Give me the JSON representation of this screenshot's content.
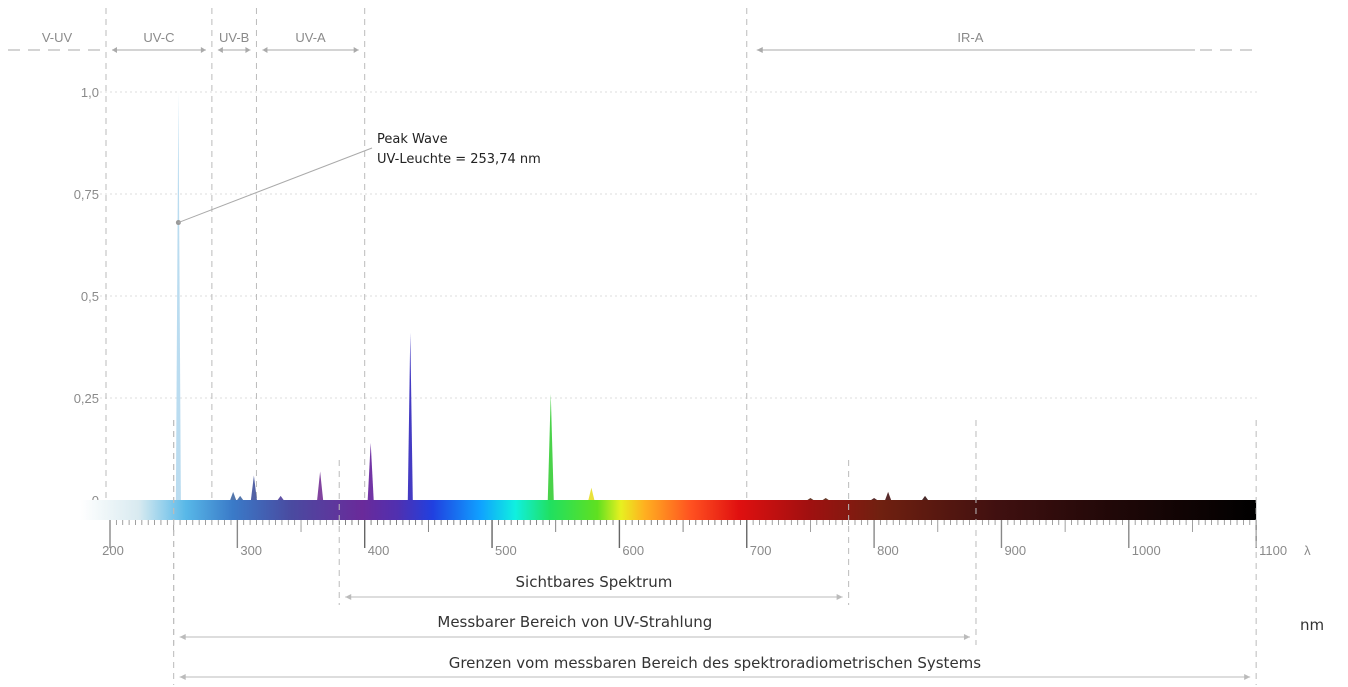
{
  "chart_data": {
    "type": "line",
    "title": "",
    "xlabel": "λ",
    "x_unit": "nm",
    "ylabel": "",
    "xlim": [
      180,
      1100
    ],
    "ylim": [
      0,
      1.0
    ],
    "grid": true,
    "y_ticks": [
      {
        "value": 0,
        "label": "0"
      },
      {
        "value": 0.25,
        "label": "0,25"
      },
      {
        "value": 0.5,
        "label": "0,5"
      },
      {
        "value": 0.75,
        "label": "0,75"
      },
      {
        "value": 1.0,
        "label": "1,0"
      }
    ],
    "x_ticks": [
      {
        "value": 200,
        "label": "200"
      },
      {
        "value": 300,
        "label": "300"
      },
      {
        "value": 400,
        "label": "400"
      },
      {
        "value": 500,
        "label": "500"
      },
      {
        "value": 600,
        "label": "600"
      },
      {
        "value": 700,
        "label": "700"
      },
      {
        "value": 800,
        "label": "800"
      },
      {
        "value": 900,
        "label": "900"
      },
      {
        "value": 1000,
        "label": "1000"
      },
      {
        "value": 1100,
        "label": "1100"
      }
    ],
    "series": [
      {
        "peaks": [
          {
            "x": 253.7,
            "y": 1.0,
            "color": "#a9d3ec"
          },
          {
            "x": 296.7,
            "y": 0.02,
            "color": "#4a6fa8"
          },
          {
            "x": 302.2,
            "y": 0.01,
            "color": "#4a6fa8"
          },
          {
            "x": 313.0,
            "y": 0.06,
            "color": "#4a5aa0"
          },
          {
            "x": 334.0,
            "y": 0.01,
            "color": "#5a4aa0"
          },
          {
            "x": 365.0,
            "y": 0.07,
            "color": "#7a3a9a"
          },
          {
            "x": 404.7,
            "y": 0.14,
            "color": "#6a2aa0"
          },
          {
            "x": 435.8,
            "y": 0.41,
            "color": "#3a30c0"
          },
          {
            "x": 546.1,
            "y": 0.26,
            "color": "#40d040"
          },
          {
            "x": 578.0,
            "y": 0.03,
            "color": "#e8e030"
          },
          {
            "x": 750.0,
            "y": 0.005,
            "color": "#603020"
          },
          {
            "x": 762.0,
            "y": 0.005,
            "color": "#603020"
          },
          {
            "x": 800.0,
            "y": 0.005,
            "color": "#502020"
          },
          {
            "x": 811.0,
            "y": 0.02,
            "color": "#502020"
          },
          {
            "x": 840.0,
            "y": 0.01,
            "color": "#402020"
          }
        ]
      }
    ],
    "annotations": [
      {
        "text": "Peak Wave",
        "x": 253.7,
        "y": 0.68
      },
      {
        "text": "UV-Leuchte = 253,74 nm",
        "x": 253.7,
        "y": 0.68
      }
    ]
  },
  "bands": [
    {
      "label": "V-UV",
      "from": 180,
      "to": 200
    },
    {
      "label": "UV-C",
      "from": 200,
      "to": 280
    },
    {
      "label": "UV-B",
      "from": 280,
      "to": 315
    },
    {
      "label": "UV-A",
      "from": 315,
      "to": 400
    },
    {
      "label": "IR-A",
      "from": 700,
      "to": 1400
    }
  ],
  "ranges": [
    {
      "label": "Sichtbares Spektrum",
      "from": 380,
      "to": 780
    },
    {
      "label": "Messbarer Bereich von UV-Strahlung",
      "from": 250,
      "to": 880
    },
    {
      "label": "Grenzen vom messbaren Bereich des spektroradiometrischen Systems",
      "from": 250,
      "to": 1100
    }
  ],
  "colors": {
    "grid": "#dddddd",
    "dashed": "#bbbbbb",
    "axis_text": "#8a8a8a",
    "range_text": "#333333"
  }
}
